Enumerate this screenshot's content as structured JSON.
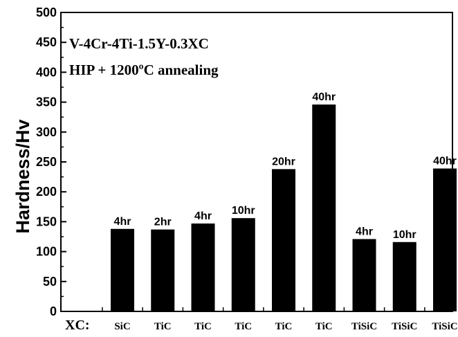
{
  "chart_data": {
    "type": "bar",
    "ylabel": "Hardness/Hv",
    "ylim": [
      0,
      500
    ],
    "yticks": [
      0,
      50,
      100,
      150,
      200,
      250,
      300,
      350,
      400,
      450,
      500
    ],
    "xprefix": "XC:",
    "categories": [
      "SiC",
      "TiC",
      "TiC",
      "TiC",
      "TiC",
      "TiC",
      "TiSiC",
      "TiSiC",
      "TiSiC"
    ],
    "bar_labels": [
      "4hr",
      "2hr",
      "4hr",
      "10hr",
      "20hr",
      "40hr",
      "4hr",
      "10hr",
      "40hr"
    ],
    "values": [
      138,
      137,
      147,
      156,
      238,
      346,
      121,
      116,
      239
    ],
    "annotations": [
      "V-4Cr-4Ti-1.5Y-0.3XC",
      "HIP + 1200ºC annealing"
    ],
    "bar_color": "#000000",
    "grid": false
  }
}
